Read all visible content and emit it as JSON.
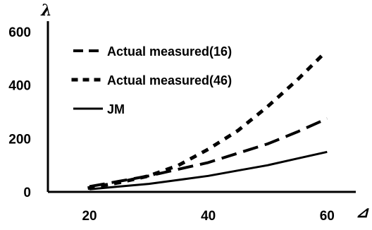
{
  "chart_data": {
    "type": "line",
    "ylabel": "λ",
    "xlabel": "⊿",
    "xlim": [
      13,
      64
    ],
    "ylim": [
      0,
      600
    ],
    "x_ticks": [
      "20",
      "40",
      "60"
    ],
    "y_ticks": [
      "0",
      "200",
      "400",
      "600"
    ],
    "grid": false,
    "legend_position": "top-left",
    "series": [
      {
        "name": "Actual measured(16)",
        "style": "dashed",
        "color": "#000000",
        "x": [
          20,
          25,
          30,
          35,
          40,
          45,
          50,
          55,
          60
        ],
        "y": [
          20,
          40,
          60,
          85,
          110,
          145,
          180,
          225,
          275
        ]
      },
      {
        "name": "Actual measured(46)",
        "style": "dotted",
        "color": "#000000",
        "x": [
          20,
          25,
          30,
          35,
          40,
          45,
          50,
          55,
          60
        ],
        "y": [
          15,
          35,
          60,
          100,
          160,
          230,
          320,
          420,
          530
        ]
      },
      {
        "name": "JM",
        "style": "solid",
        "color": "#000000",
        "x": [
          20,
          25,
          30,
          35,
          40,
          45,
          50,
          55,
          60
        ],
        "y": [
          10,
          20,
          30,
          45,
          60,
          80,
          100,
          125,
          150
        ]
      }
    ]
  }
}
